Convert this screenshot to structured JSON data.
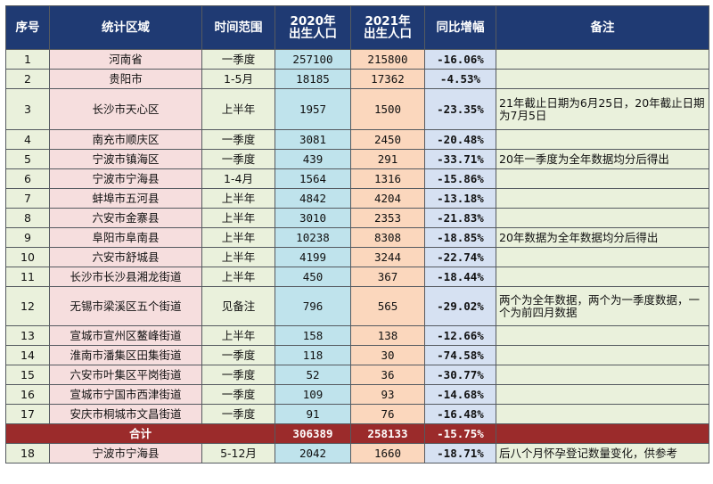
{
  "headers": [
    "序号",
    "统计区域",
    "时间范围",
    "2020年\n出生人口",
    "2021年\n出生人口",
    "同比增幅",
    "备注"
  ],
  "rows": [
    {
      "no": "1",
      "region": "河南省",
      "period": "一季度",
      "y2020": "257100",
      "y2021": "215800",
      "change": "-16.06%",
      "note": ""
    },
    {
      "no": "2",
      "region": "贵阳市",
      "period": "1-5月",
      "y2020": "18185",
      "y2021": "17362",
      "change": "-4.53%",
      "note": ""
    },
    {
      "no": "3",
      "region": "长沙市天心区",
      "period": "上半年",
      "y2020": "1957",
      "y2021": "1500",
      "change": "-23.35%",
      "note": "21年截止日期为6月25日，20年截止日期为7月5日"
    },
    {
      "no": "4",
      "region": "南充市顺庆区",
      "period": "一季度",
      "y2020": "3081",
      "y2021": "2450",
      "change": "-20.48%",
      "note": ""
    },
    {
      "no": "5",
      "region": "宁波市镇海区",
      "period": "一季度",
      "y2020": "439",
      "y2021": "291",
      "change": "-33.71%",
      "note": "20年一季度为全年数据均分后得出"
    },
    {
      "no": "6",
      "region": "宁波市宁海县",
      "period": "1-4月",
      "y2020": "1564",
      "y2021": "1316",
      "change": "-15.86%",
      "note": ""
    },
    {
      "no": "7",
      "region": "蚌埠市五河县",
      "period": "上半年",
      "y2020": "4842",
      "y2021": "4204",
      "change": "-13.18%",
      "note": ""
    },
    {
      "no": "8",
      "region": "六安市金寨县",
      "period": "上半年",
      "y2020": "3010",
      "y2021": "2353",
      "change": "-21.83%",
      "note": ""
    },
    {
      "no": "9",
      "region": "阜阳市阜南县",
      "period": "上半年",
      "y2020": "10238",
      "y2021": "8308",
      "change": "-18.85%",
      "note": "20年数据为全年数据均分后得出"
    },
    {
      "no": "10",
      "region": "六安市舒城县",
      "period": "上半年",
      "y2020": "4199",
      "y2021": "3244",
      "change": "-22.74%",
      "note": ""
    },
    {
      "no": "11",
      "region": "长沙市长沙县湘龙街道",
      "period": "上半年",
      "y2020": "450",
      "y2021": "367",
      "change": "-18.44%",
      "note": ""
    },
    {
      "no": "12",
      "region": "无锡市梁溪区五个街道",
      "period": "见备注",
      "y2020": "796",
      "y2021": "565",
      "change": "-29.02%",
      "note": "两个为全年数据，两个为一季度数据，一个为前四月数据"
    },
    {
      "no": "13",
      "region": "宣城市宣州区鳌峰街道",
      "period": "上半年",
      "y2020": "158",
      "y2021": "138",
      "change": "-12.66%",
      "note": ""
    },
    {
      "no": "14",
      "region": "淮南市潘集区田集街道",
      "period": "一季度",
      "y2020": "118",
      "y2021": "30",
      "change": "-74.58%",
      "note": ""
    },
    {
      "no": "15",
      "region": "六安市叶集区平岗街道",
      "period": "一季度",
      "y2020": "52",
      "y2021": "36",
      "change": "-30.77%",
      "note": ""
    },
    {
      "no": "16",
      "region": "宣城市宁国市西津街道",
      "period": "一季度",
      "y2020": "109",
      "y2021": "93",
      "change": "-14.68%",
      "note": ""
    },
    {
      "no": "17",
      "region": "安庆市桐城市文昌街道",
      "period": "一季度",
      "y2020": "91",
      "y2021": "76",
      "change": "-16.48%",
      "note": ""
    }
  ],
  "total": {
    "label": "合计",
    "y2020": "306389",
    "y2021": "258133",
    "change": "-15.75%"
  },
  "extra": {
    "no": "18",
    "region": "宁波市宁海县",
    "period": "5-12月",
    "y2020": "2042",
    "y2021": "1660",
    "change": "-18.71%",
    "note": "后八个月怀孕登记数量变化，供参考"
  }
}
